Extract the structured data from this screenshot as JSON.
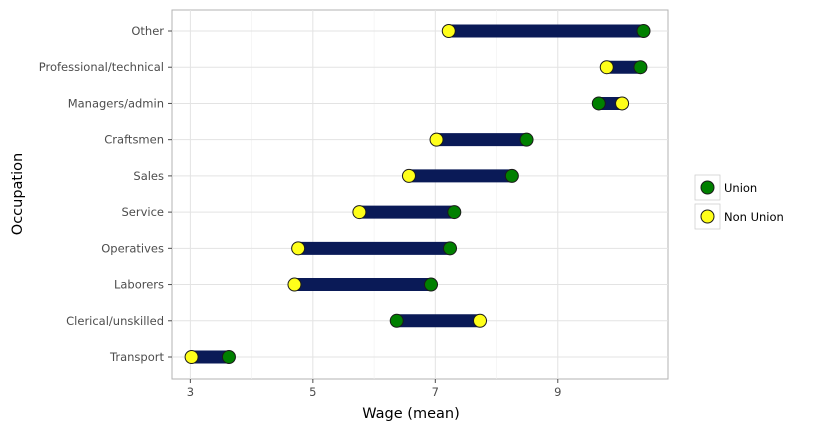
{
  "chart_data": {
    "type": "dumbbell",
    "title": "",
    "xlabel": "Wage (mean)",
    "ylabel": "Occupation",
    "xlim": [
      2.7,
      10.8
    ],
    "xticks": [
      3,
      5,
      7,
      9
    ],
    "grid": true,
    "legend_position": "right",
    "categories": [
      "Transport",
      "Clerical/unskilled",
      "Laborers",
      "Operatives",
      "Service",
      "Sales",
      "Craftsmen",
      "Managers/admin",
      "Professional/technical",
      "Other"
    ],
    "series": [
      {
        "name": "Union",
        "color": "#008000",
        "values": [
          3.63,
          6.37,
          6.93,
          7.24,
          7.31,
          8.25,
          8.49,
          9.67,
          10.35,
          10.4
        ]
      },
      {
        "name": "Non Union",
        "color": "#ffff1a",
        "values": [
          3.02,
          7.73,
          4.7,
          4.76,
          5.76,
          6.57,
          7.02,
          10.05,
          9.8,
          7.22
        ]
      }
    ],
    "segment_color": "#0a1a57"
  }
}
